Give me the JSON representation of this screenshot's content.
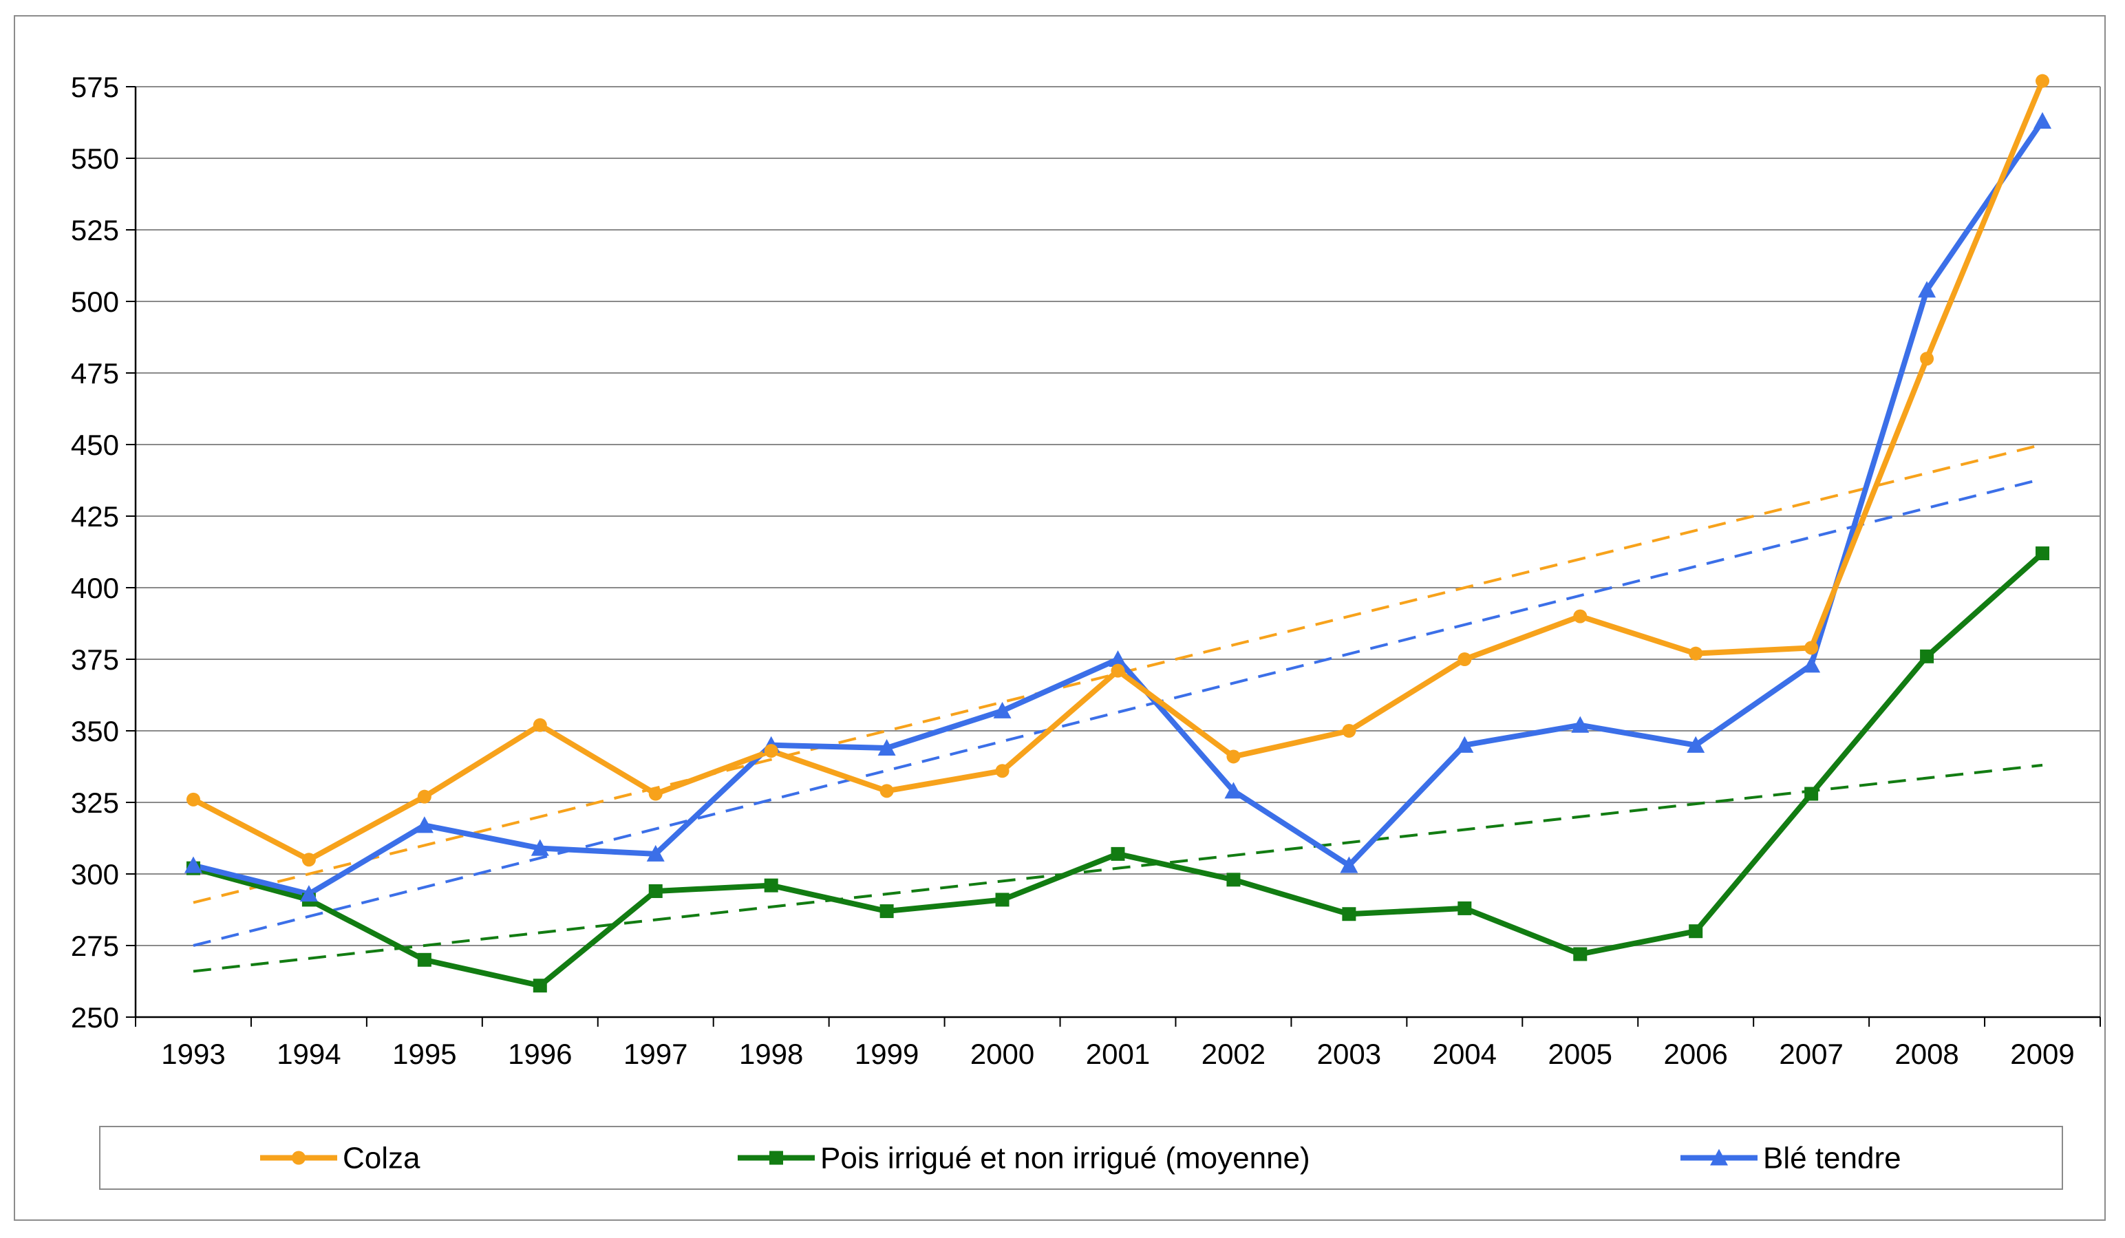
{
  "chart_data": {
    "type": "line",
    "title": "",
    "xlabel": "",
    "ylabel": "",
    "categories": [
      "1993",
      "1994",
      "1995",
      "1996",
      "1997",
      "1998",
      "1999",
      "2000",
      "2001",
      "2002",
      "2003",
      "2004",
      "2005",
      "2006",
      "2007",
      "2008",
      "2009"
    ],
    "ylim": [
      250,
      575
    ],
    "yticks": [
      250,
      275,
      300,
      325,
      350,
      375,
      400,
      425,
      450,
      475,
      500,
      525,
      550,
      575
    ],
    "grid": "horizontal",
    "legend_position": "bottom",
    "series": [
      {
        "name": "Colza",
        "color": "#f7a21b",
        "marker": "circle",
        "values": [
          326,
          305,
          327,
          352,
          328,
          343,
          329,
          336,
          371,
          341,
          350,
          375,
          390,
          377,
          379,
          480,
          577
        ],
        "trend": [
          290,
          450
        ]
      },
      {
        "name": "Pois irrigué et non irrigué (moyenne)",
        "color": "#127c12",
        "marker": "square",
        "values": [
          302,
          291,
          270,
          261,
          294,
          296,
          287,
          291,
          307,
          298,
          286,
          288,
          272,
          280,
          328,
          376,
          412
        ],
        "trend": [
          266,
          338
        ]
      },
      {
        "name": "Blé tendre",
        "color": "#3b6fe8",
        "marker": "triangle",
        "values": [
          303,
          293,
          317,
          309,
          307,
          345,
          344,
          357,
          375,
          329,
          303,
          345,
          352,
          345,
          373,
          504,
          563
        ],
        "trend": [
          275,
          438
        ]
      }
    ]
  }
}
